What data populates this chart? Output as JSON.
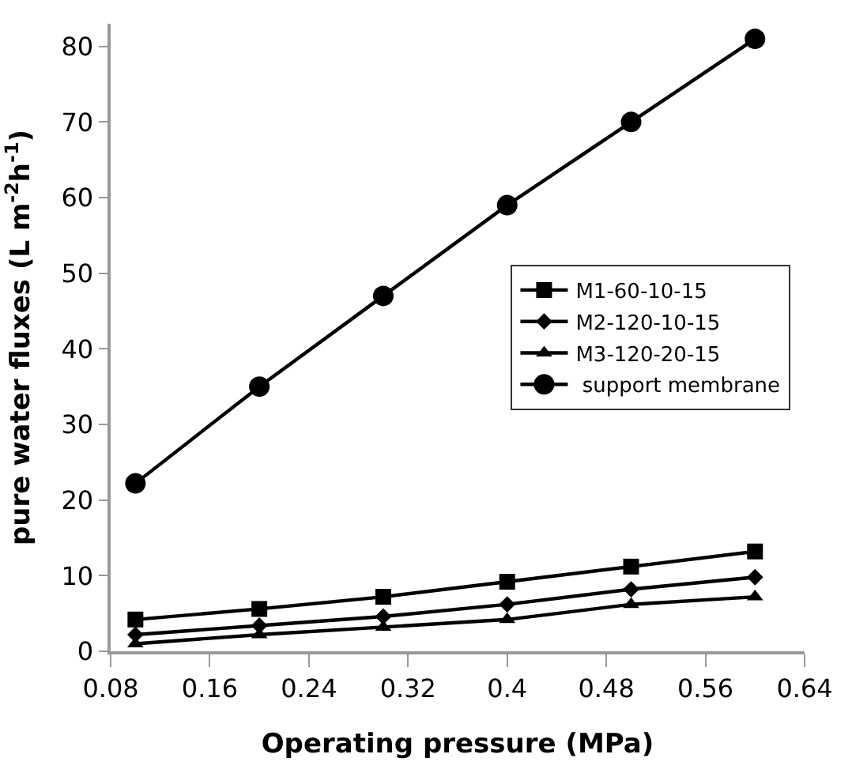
{
  "chart_data": {
    "type": "line",
    "xlabel": "Operating pressure (MPa)",
    "ylabel": "pure water fluxes (L m$^{-2}$h$^{-1}$)",
    "x": [
      0.1,
      0.2,
      0.3,
      0.4,
      0.5,
      0.6
    ],
    "series": [
      {
        "name": "M1-60-10-15",
        "color": "#000000",
        "marker": "square",
        "values": [
          4.2,
          5.6,
          7.2,
          9.2,
          11.2,
          13.2
        ]
      },
      {
        "name": "M2-120-10-15",
        "color": "#000000",
        "marker": "diamond",
        "values": [
          2.2,
          3.4,
          4.6,
          6.2,
          8.2,
          9.8
        ]
      },
      {
        "name": "M3-120-20-15",
        "color": "#000000",
        "marker": "triangle",
        "values": [
          1.0,
          2.2,
          3.2,
          4.2,
          6.2,
          7.2
        ]
      },
      {
        "name": " support membrane",
        "color": "#000000",
        "marker": "circle",
        "values": [
          22.2,
          35,
          47,
          59,
          70,
          81
        ]
      }
    ],
    "xlim": [
      0.08,
      0.64
    ],
    "xticks": [
      0.08,
      0.16,
      0.24,
      0.32,
      0.4,
      0.48,
      0.56,
      0.64
    ],
    "ylim": [
      0,
      83
    ],
    "yticks": [
      0,
      10,
      20,
      30,
      40,
      50,
      60,
      70,
      80
    ],
    "legend": "right",
    "line_style": "solid"
  }
}
